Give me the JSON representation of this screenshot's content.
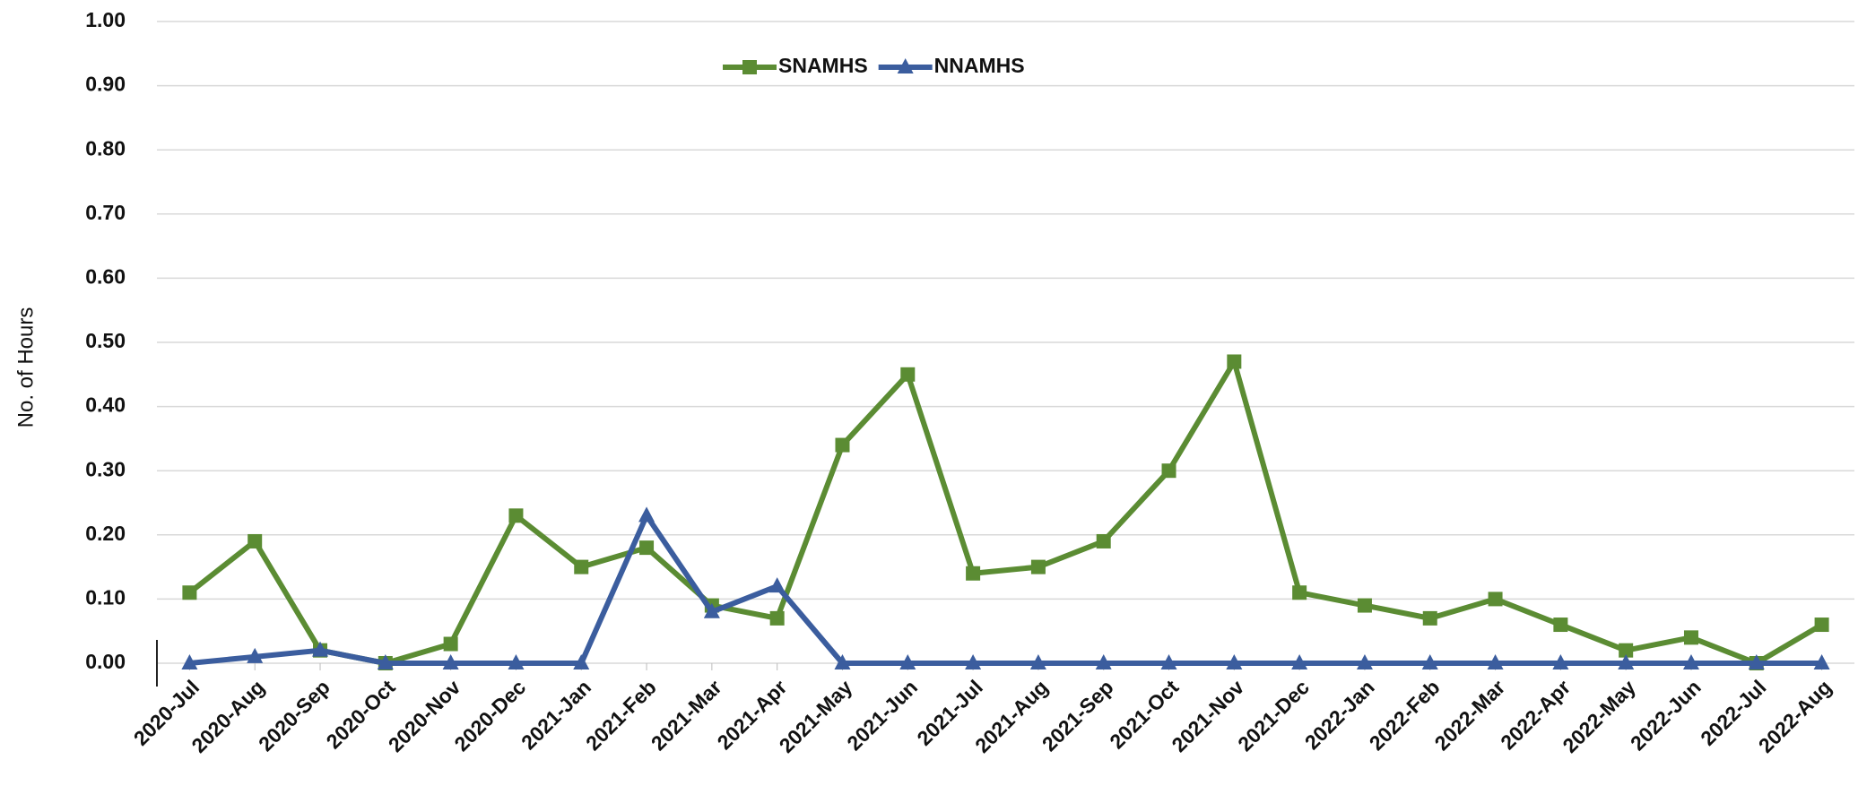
{
  "chart_data": {
    "type": "line",
    "categories": [
      "2020-Jul",
      "2020-Aug",
      "2020-Sep",
      "2020-Oct",
      "2020-Nov",
      "2020-Dec",
      "2021-Jan",
      "2021-Feb",
      "2021-Mar",
      "2021-Apr",
      "2021-May",
      "2021-Jun",
      "2021-Jul",
      "2021-Aug",
      "2021-Sep",
      "2021-Oct",
      "2021-Nov",
      "2021-Dec",
      "2022-Jan",
      "2022-Feb",
      "2022-Mar",
      "2022-Apr",
      "2022-May",
      "2022-Jun",
      "2022-Jul",
      "2022-Aug"
    ],
    "series": [
      {
        "name": "SNAMHS",
        "color": "#5b8c33",
        "marker": "square",
        "values": [
          0.11,
          0.19,
          0.02,
          0,
          0.03,
          0.23,
          0.15,
          0.18,
          0.09,
          0.07,
          0.34,
          0.45,
          0.14,
          0.15,
          0.19,
          0.3,
          0.47,
          0.11,
          0.09,
          0.07,
          0.1,
          0.06,
          0.02,
          0.04,
          0,
          0.06
        ]
      },
      {
        "name": "NNAMHS",
        "color": "#3b5d9e",
        "marker": "triangle",
        "values": [
          0,
          0.01,
          0.02,
          0,
          0,
          0,
          0,
          0.23,
          0.08,
          0.12,
          0,
          0,
          0,
          0,
          0,
          0,
          0,
          0,
          0,
          0,
          0,
          0,
          0,
          0,
          0,
          0
        ]
      }
    ],
    "ylabel": "No. of Hours",
    "ylim": [
      0,
      1
    ],
    "yticks": [
      {
        "value": 0,
        "label": "0.00"
      },
      {
        "value": 0.1,
        "label": "0.10"
      },
      {
        "value": 0.2,
        "label": "0.20"
      },
      {
        "value": 0.3,
        "label": "0.30"
      },
      {
        "value": 0.4,
        "label": "0.40"
      },
      {
        "value": 0.5,
        "label": "0.50"
      },
      {
        "value": 0.6,
        "label": "0.60"
      },
      {
        "value": 0.7,
        "label": "0.70"
      },
      {
        "value": 0.8,
        "label": "0.80"
      },
      {
        "value": 0.9,
        "label": "0.90"
      },
      {
        "value": 1,
        "label": "1.00"
      }
    ],
    "grid": true,
    "legend": "top"
  }
}
